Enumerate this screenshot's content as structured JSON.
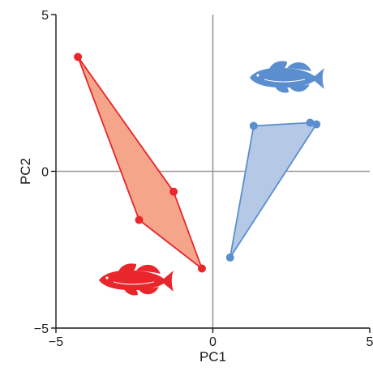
{
  "chart_data": {
    "type": "scatter",
    "title": "",
    "xlabel": "PC1",
    "ylabel": "PC2",
    "xlim": [
      -5,
      5
    ],
    "ylim": [
      -5,
      5
    ],
    "xticks": [
      "−5",
      "0",
      "5"
    ],
    "yticks": [
      "−5",
      "0",
      "5"
    ],
    "xtick_values": [
      -5,
      0,
      5
    ],
    "ytick_values": [
      -5,
      0,
      5
    ],
    "grid": false,
    "zero_lines": true,
    "hull": true,
    "series": [
      {
        "color": "#e8262b",
        "fill": "#f4a58a",
        "icon": "fish-icon",
        "points": [
          {
            "x": -4.3,
            "y": 3.65
          },
          {
            "x": -1.25,
            "y": -0.65
          },
          {
            "x": -0.35,
            "y": -3.1
          },
          {
            "x": -2.35,
            "y": -1.55
          }
        ]
      },
      {
        "color": "#5b8ecf",
        "fill": "#b5c9e6",
        "icon": "fish-icon",
        "points": [
          {
            "x": 1.3,
            "y": 1.45
          },
          {
            "x": 3.1,
            "y": 1.55
          },
          {
            "x": 3.3,
            "y": 1.5
          },
          {
            "x": 0.55,
            "y": -2.75
          }
        ]
      }
    ]
  }
}
